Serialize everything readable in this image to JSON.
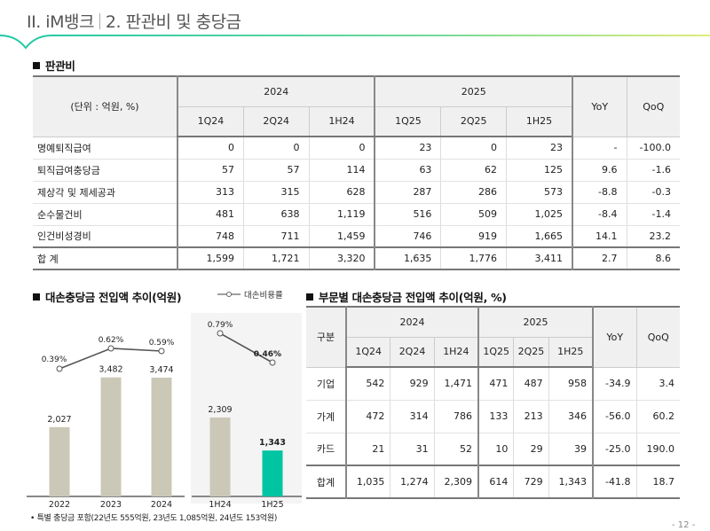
{
  "header": {
    "section": "II. iM뱅크",
    "title": "2. 판관비 및 충당금"
  },
  "sga": {
    "section_title": "판관비",
    "unit_label": "(단위 : 억원, %)",
    "groups": [
      "2024",
      "2025"
    ],
    "columns": [
      "1Q24",
      "2Q24",
      "1H24",
      "1Q25",
      "2Q25",
      "1H25",
      "YoY",
      "QoQ"
    ],
    "rows": [
      {
        "label": "명예퇴직급여",
        "values": [
          "0",
          "0",
          "0",
          "23",
          "0",
          "23",
          "-",
          "-100.0"
        ]
      },
      {
        "label": "퇴직급여충당금",
        "values": [
          "57",
          "57",
          "114",
          "63",
          "62",
          "125",
          "9.6",
          "-1.6"
        ]
      },
      {
        "label": "제상각 및 제세공과",
        "values": [
          "313",
          "315",
          "628",
          "287",
          "286",
          "573",
          "-8.8",
          "-0.3"
        ]
      },
      {
        "label": "순수물건비",
        "values": [
          "481",
          "638",
          "1,119",
          "516",
          "509",
          "1,025",
          "-8.4",
          "-1.4"
        ]
      },
      {
        "label": "인건비성경비",
        "values": [
          "748",
          "711",
          "1,459",
          "746",
          "919",
          "1,665",
          "14.1",
          "23.2"
        ]
      }
    ],
    "total": {
      "label": "합 계",
      "values": [
        "1,599",
        "1,721",
        "3,320",
        "1,635",
        "1,776",
        "3,411",
        "2.7",
        "8.6"
      ]
    }
  },
  "provision_chart": {
    "section_title": "대손충당금 전입액 추이(억원)",
    "legend_label": "대손비용률",
    "footnote": "• 특별 충당금 포함(22년도 555억원, 23년도 1,085억원, 24년도 153억원)"
  },
  "chart_data": {
    "type": "bar",
    "title": "대손충당금 전입액 추이(억원)",
    "categories": [
      "2022",
      "2023",
      "2024",
      "1H24",
      "1H25"
    ],
    "series": [
      {
        "name": "대손충당금 전입액",
        "type": "bar",
        "values": [
          2027,
          3482,
          3474,
          2309,
          1343
        ],
        "labels": [
          "2,027",
          "3,482",
          "3,474",
          "2,309",
          "1,343"
        ],
        "colors": [
          "#cbc8b8",
          "#cbc8b8",
          "#cbc8b8",
          "#cbc8b8",
          "#00c4a2"
        ]
      },
      {
        "name": "대손비용률",
        "type": "line",
        "values": [
          0.39,
          0.62,
          0.59,
          0.79,
          0.46
        ],
        "labels": [
          "0.39%",
          "0.62%",
          "0.59%",
          "0.79%",
          "0.46%"
        ],
        "segments": [
          [
            0,
            1,
            2
          ],
          [
            3,
            4
          ]
        ]
      }
    ],
    "panels": [
      {
        "categories": [
          "2022",
          "2023",
          "2024"
        ]
      },
      {
        "categories": [
          "1H24",
          "1H25"
        ],
        "shaded": true
      }
    ],
    "legend": "top-right",
    "grid": false,
    "xlabel": "",
    "ylabel": ""
  },
  "segment": {
    "section_title": "부문별 대손충당금 전입액 추이(억원, %)",
    "first_header": "구분",
    "groups": [
      "2024",
      "2025"
    ],
    "columns": [
      "1Q24",
      "2Q24",
      "1H24",
      "1Q25",
      "2Q25",
      "1H25",
      "YoY",
      "QoQ"
    ],
    "rows": [
      {
        "label": "기업",
        "values": [
          "542",
          "929",
          "1,471",
          "471",
          "487",
          "958",
          "-34.9",
          "3.4"
        ]
      },
      {
        "label": "가계",
        "values": [
          "472",
          "314",
          "786",
          "133",
          "213",
          "346",
          "-56.0",
          "60.2"
        ]
      },
      {
        "label": "카드",
        "values": [
          "21",
          "31",
          "52",
          "10",
          "29",
          "39",
          "-25.0",
          "190.0"
        ]
      }
    ],
    "total": {
      "label": "합계",
      "values": [
        "1,035",
        "1,274",
        "2,309",
        "614",
        "729",
        "1,343",
        "-41.8",
        "18.7"
      ]
    }
  },
  "page_number": "- 12 -",
  "colors": {
    "accent": "#22c9a4",
    "bar_gray": "#cbc8b8",
    "bar_highlight": "#00c4a2"
  }
}
